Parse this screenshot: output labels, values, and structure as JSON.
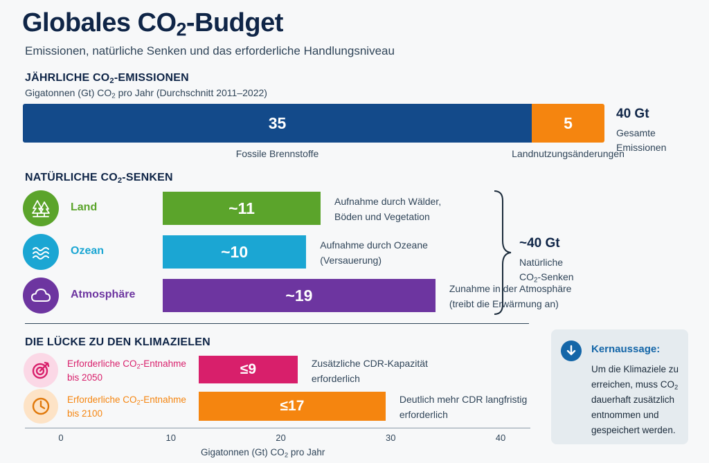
{
  "title_main": "Globales CO",
  "title_sub": "2",
  "title_rest": "-Budget",
  "subtitle": "Emissionen, natürliche Senken und das erforderliche Handlungsniveau",
  "emissions": {
    "heading_pre": "JÄHRLICHE CO",
    "heading_sub": "2",
    "heading_post": "-EMISSIONEN",
    "unit_pre": "Gigatonnen (Gt) CO",
    "unit_sub": "2",
    "unit_post": " pro Jahr (Durchschnitt 2011–2022)",
    "total_value": "40 Gt",
    "total_label_1": "Gesamte",
    "total_label_2": "Emissionen"
  },
  "sinks": {
    "heading_pre": "NATÜRLICHE CO",
    "heading_sub": "2",
    "heading_post": "-SENKEN",
    "total_value": "~40 Gt",
    "total_label_1": "Natürliche",
    "total_label_pre": "CO",
    "total_label_sub": "2",
    "total_label_post": "-Senken"
  },
  "gap": {
    "heading": "DIE LÜCKE ZU DEN KLIMAZIELEN",
    "axis_label_pre": "Gigatonnen (Gt) CO",
    "axis_label_sub": "2",
    "axis_label_post": " pro Jahr"
  },
  "key_message": {
    "heading": "Kernaussage:",
    "line1": "Um die Klimaziele zu",
    "line2_pre": "erreichen, muss CO",
    "line2_sub": "2",
    "line3": "dauerhaft zusätzlich",
    "line4": "entnommen und",
    "line5": "gespeichert werden."
  },
  "colors": {
    "fossil": "#134a8a",
    "landuse": "#f5850f",
    "land": "#5ba42b",
    "ocean": "#1ba6d3",
    "atmosphere": "#6d35a0",
    "cdr2050": "#d81f6b",
    "cdr2100": "#f5850f"
  },
  "chart_data": [
    {
      "type": "bar",
      "orientation": "horizontal-stacked",
      "categories": [
        "Fossile Brennstoffe",
        "Landnutzungsänderungen"
      ],
      "values": [
        35,
        5
      ],
      "value_labels": [
        "35",
        "5"
      ],
      "xlim": [
        0,
        40
      ]
    },
    {
      "type": "bar",
      "orientation": "horizontal",
      "categories": [
        "Land",
        "Ozean",
        "Atmosphäre"
      ],
      "values": [
        11,
        10,
        19
      ],
      "value_labels": [
        "~11",
        "~10",
        "~19"
      ],
      "descriptions": [
        [
          "Aufnahme durch Wälder,",
          "Böden und Vegetation"
        ],
        [
          "Aufnahme durch Ozeane",
          "(Versauerung)"
        ],
        [
          "Zunahme in der Atmosphäre",
          "(treibt die Erwärmung an)"
        ]
      ],
      "icons": [
        "trees-icon",
        "waves-icon",
        "cloud-icon"
      ]
    },
    {
      "type": "bar",
      "orientation": "horizontal",
      "categories": [
        {
          "pre": "Erforderliche CO",
          "sub": "2",
          "post": "-Entnahme",
          "line2": "bis 2050"
        },
        {
          "pre": "Erforderliche CO",
          "sub": "2",
          "post": "-Entnahme",
          "line2": "bis 2100"
        }
      ],
      "values": [
        9,
        17
      ],
      "value_labels": [
        "≤9",
        "≤17"
      ],
      "descriptions": [
        [
          "Zusätzliche CDR-Kapazität",
          "erforderlich"
        ],
        [
          "Deutlich mehr CDR langfristig",
          "erforderlich"
        ]
      ],
      "icons": [
        "target-icon",
        "clock-icon"
      ],
      "xlim": [
        0,
        40
      ],
      "xticks": [
        0,
        10,
        20,
        30,
        40
      ],
      "xtick_labels": [
        "0",
        "10",
        "20",
        "30",
        "40"
      ]
    }
  ]
}
